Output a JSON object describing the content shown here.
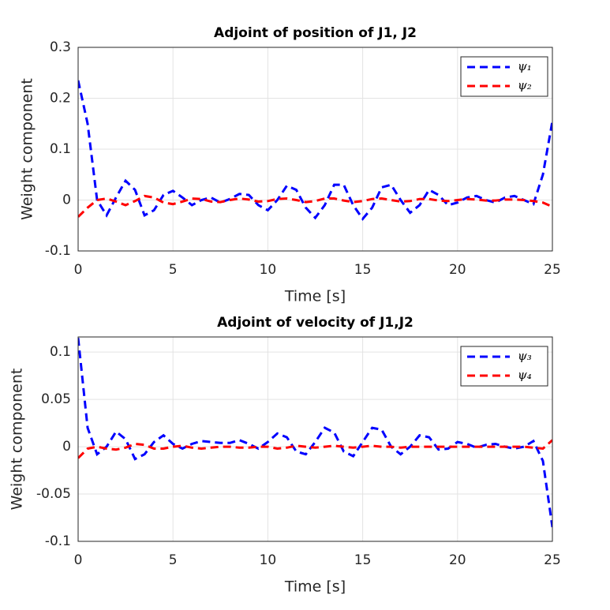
{
  "chart_data": [
    {
      "type": "line",
      "title": "Adjoint of position of J1, J2",
      "x_label": "Time [s]",
      "y_label": "Weight component",
      "x": [
        0,
        0.5,
        1,
        1.5,
        2,
        2.5,
        3,
        3.5,
        4,
        4.5,
        5,
        5.5,
        6,
        6.5,
        7,
        7.5,
        8,
        8.5,
        9,
        9.5,
        10,
        10.5,
        11,
        11.5,
        12,
        12.5,
        13,
        13.5,
        14,
        14.5,
        15,
        15.5,
        16,
        16.5,
        17,
        17.5,
        18,
        18.5,
        19,
        19.5,
        20,
        20.5,
        21,
        21.5,
        22,
        22.5,
        23,
        23.5,
        24,
        24.5,
        25
      ],
      "series": [
        {
          "name": "ψ₁",
          "color": "#0000ff",
          "values": [
            0.235,
            0.15,
            0.0,
            -0.03,
            0.005,
            0.038,
            0.02,
            -0.03,
            -0.02,
            0.01,
            0.018,
            0.005,
            -0.01,
            0.0,
            0.005,
            -0.005,
            0.002,
            0.012,
            0.01,
            -0.01,
            -0.02,
            0.0,
            0.028,
            0.02,
            -0.015,
            -0.035,
            -0.01,
            0.03,
            0.03,
            -0.01,
            -0.037,
            -0.015,
            0.025,
            0.03,
            0.0,
            -0.025,
            -0.01,
            0.02,
            0.01,
            -0.01,
            -0.005,
            0.005,
            0.008,
            0.0,
            -0.005,
            0.005,
            0.008,
            0.0,
            -0.008,
            0.05,
            0.155
          ]
        },
        {
          "name": "ψ₂",
          "color": "#ff0000",
          "values": [
            -0.033,
            -0.015,
            0.0,
            0.003,
            -0.003,
            -0.01,
            -0.002,
            0.008,
            0.005,
            -0.005,
            -0.008,
            -0.003,
            0.003,
            0.002,
            -0.003,
            -0.004,
            0.0,
            0.003,
            0.001,
            -0.003,
            -0.002,
            0.002,
            0.003,
            0.0,
            -0.004,
            -0.002,
            0.003,
            0.003,
            -0.001,
            -0.004,
            -0.002,
            0.002,
            0.003,
            0.0,
            -0.003,
            -0.002,
            0.002,
            0.002,
            -0.001,
            -0.002,
            0.0,
            0.002,
            0.001,
            -0.001,
            -0.001,
            0.001,
            0.001,
            0.0,
            -0.002,
            -0.005,
            -0.013
          ]
        }
      ],
      "xlim": [
        0,
        25
      ],
      "ylim": [
        -0.1,
        0.3
      ],
      "xticks": [
        0,
        5,
        10,
        15,
        20,
        25
      ],
      "yticks": [
        -0.1,
        0,
        0.1,
        0.2,
        0.3
      ],
      "grid": true,
      "legend": "northeast"
    },
    {
      "type": "line",
      "title": "Adjoint of velocity of J1,J2",
      "x_label": "Time [s]",
      "y_label": "Weight component",
      "x": [
        0,
        0.5,
        1,
        1.5,
        2,
        2.5,
        3,
        3.5,
        4,
        4.5,
        5,
        5.5,
        6,
        6.5,
        7,
        7.5,
        8,
        8.5,
        9,
        9.5,
        10,
        10.5,
        11,
        11.5,
        12,
        12.5,
        13,
        13.5,
        14,
        14.5,
        15,
        15.5,
        16,
        16.5,
        17,
        17.5,
        18,
        18.5,
        19,
        19.5,
        20,
        20.5,
        21,
        21.5,
        22,
        22.5,
        23,
        23.5,
        24,
        24.5,
        25
      ],
      "series": [
        {
          "name": "ψ₃",
          "color": "#0000ff",
          "values": [
            0.115,
            0.02,
            -0.008,
            0.0,
            0.016,
            0.008,
            -0.013,
            -0.008,
            0.005,
            0.012,
            0.003,
            -0.002,
            0.003,
            0.006,
            0.005,
            0.004,
            0.004,
            0.007,
            0.003,
            -0.002,
            0.005,
            0.014,
            0.01,
            -0.005,
            -0.008,
            0.005,
            0.02,
            0.015,
            -0.005,
            -0.01,
            0.005,
            0.02,
            0.018,
            0.0,
            -0.008,
            0.0,
            0.012,
            0.01,
            -0.003,
            -0.002,
            0.005,
            0.003,
            -0.001,
            0.002,
            0.003,
            0.0,
            -0.002,
            0.0,
            0.006,
            -0.015,
            -0.085
          ]
        },
        {
          "name": "ψ₄",
          "color": "#ff0000",
          "values": [
            -0.012,
            -0.002,
            0.0,
            -0.002,
            -0.003,
            -0.001,
            0.003,
            0.002,
            -0.002,
            -0.002,
            0.0,
            0.001,
            -0.001,
            -0.002,
            -0.001,
            0.0,
            0.0,
            -0.001,
            -0.001,
            0.0,
            0.0,
            -0.002,
            -0.001,
            0.001,
            0.0,
            -0.001,
            0.0,
            0.001,
            0.0,
            -0.001,
            0.0,
            0.001,
            0.0,
            0.0,
            -0.001,
            0.0,
            0.0,
            0.0,
            0.0,
            0.0,
            0.0,
            0.0,
            0.0,
            0.0,
            0.0,
            0.0,
            0.0,
            0.0,
            -0.001,
            -0.002,
            0.007
          ]
        }
      ],
      "xlim": [
        0,
        25
      ],
      "ylim": [
        -0.1,
        0.116
      ],
      "xticks": [
        0,
        5,
        10,
        15,
        20,
        25
      ],
      "yticks": [
        -0.1,
        -0.05,
        0,
        0.05,
        0.1
      ],
      "grid": true,
      "legend": "northeast"
    }
  ]
}
